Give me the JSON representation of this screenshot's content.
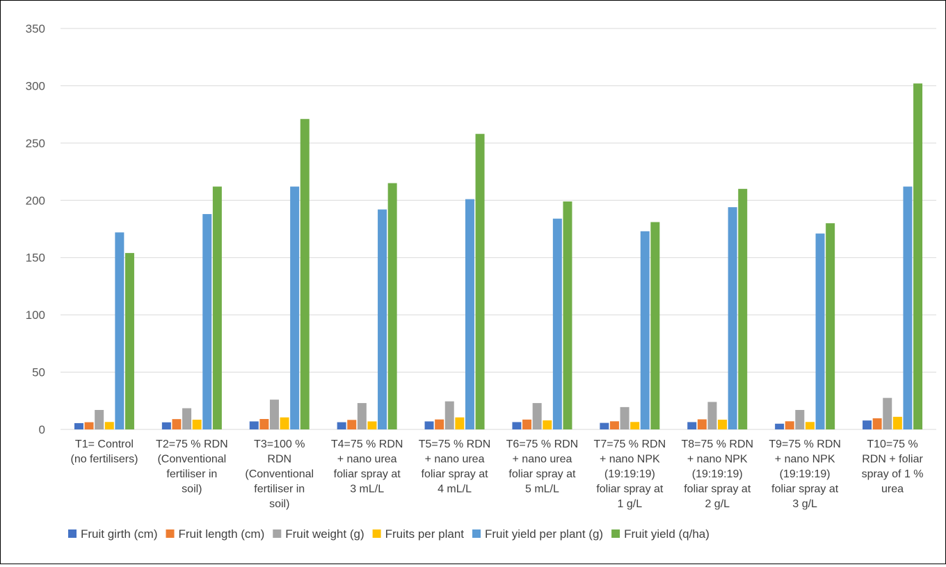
{
  "chart_data": {
    "type": "bar",
    "title": "",
    "xlabel": "",
    "ylabel": "",
    "ylim": [
      0,
      350
    ],
    "yticks": [
      0,
      50,
      100,
      150,
      200,
      250,
      300,
      350
    ],
    "grid": true,
    "legend_position": "bottom",
    "categories": [
      [
        "T1= Control",
        "(no fertilisers)"
      ],
      [
        "T2=75 % RDN",
        "(Conventional",
        "fertiliser in",
        "soil)"
      ],
      [
        "T3=100 %",
        "RDN",
        "(Conventional",
        "fertiliser in",
        "soil)"
      ],
      [
        "T4=75 % RDN",
        "+ nano urea",
        "foliar spray at",
        "3 mL/L"
      ],
      [
        "T5=75 % RDN",
        "+ nano urea",
        "foliar spray at",
        "4 mL/L"
      ],
      [
        "T6=75 % RDN",
        "+ nano urea",
        "foliar spray at",
        "5 mL/L"
      ],
      [
        "T7=75 % RDN",
        "+ nano NPK",
        "(19:19:19)",
        "foliar spray at",
        "1 g/L"
      ],
      [
        "T8=75 % RDN",
        "+ nano NPK",
        "(19:19:19)",
        "foliar spray at",
        "2 g/L"
      ],
      [
        "T9=75 % RDN",
        "+ nano NPK",
        "(19:19:19)",
        "foliar spray at",
        "3 g/L"
      ],
      [
        "T10=75 %",
        "RDN + foliar",
        "spray of 1 %",
        "urea"
      ]
    ],
    "series": [
      {
        "name": "Fruit girth (cm)",
        "color": "#4472C4",
        "values": [
          5.5,
          6.2,
          7.0,
          6.3,
          7.0,
          6.4,
          5.7,
          6.4,
          5.0,
          7.8
        ]
      },
      {
        "name": "Fruit length (cm)",
        "color": "#ED7D31",
        "values": [
          6.3,
          9.0,
          9.1,
          8.3,
          8.7,
          8.6,
          7.1,
          8.8,
          7.1,
          9.7
        ]
      },
      {
        "name": "Fruit weight (g)",
        "color": "#A5A5A5",
        "values": [
          17.0,
          18.5,
          26.0,
          23.0,
          24.5,
          23.0,
          19.5,
          24.0,
          17.0,
          27.5
        ]
      },
      {
        "name": "Fruits per plant",
        "color": "#FFC000",
        "values": [
          6.5,
          8.5,
          10.5,
          7.0,
          10.5,
          7.9,
          6.5,
          8.5,
          6.5,
          11.0
        ]
      },
      {
        "name": "Fruit yield per plant (g)",
        "color": "#5B9BD5",
        "values": [
          172,
          188,
          212,
          192,
          201,
          184,
          173,
          194,
          171,
          212
        ]
      },
      {
        "name": "Fruit yield (q/ha)",
        "color": "#70AD47",
        "values": [
          154,
          212,
          271,
          215,
          258,
          199,
          181,
          210,
          180,
          302
        ]
      }
    ]
  }
}
